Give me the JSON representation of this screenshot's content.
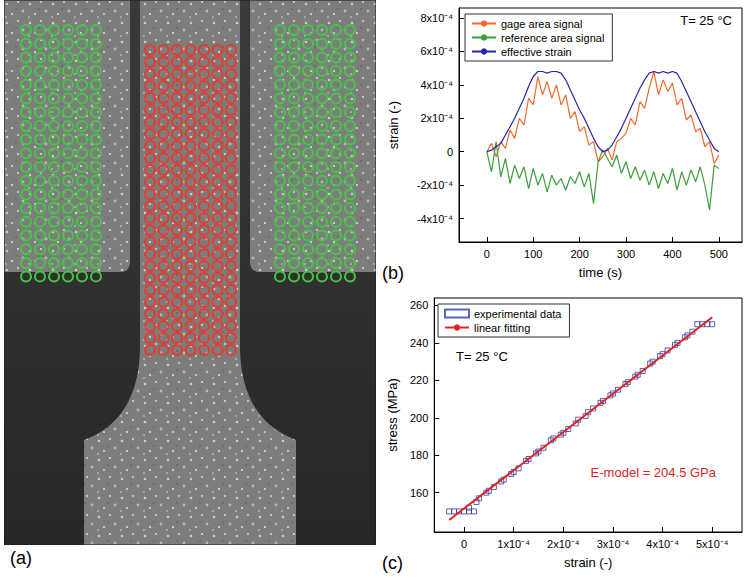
{
  "image_panel": {
    "label": "(a)"
  },
  "chart_data": [
    {
      "type": "line",
      "panel_label": "(b)",
      "x_label": "time (s)",
      "y_label": "strain (-)",
      "annotations": [
        {
          "text": "T= 25 °C",
          "color": "#000000"
        }
      ],
      "xlim": [
        -60,
        550
      ],
      "xticks": [
        0,
        100,
        200,
        300,
        400,
        500
      ],
      "ylim": [
        -0.00054,
        0.00086
      ],
      "yticks": [
        {
          "value": -0.0004,
          "label": "-4x10⁻⁴"
        },
        {
          "value": -0.0002,
          "label": "-2x10⁻⁴"
        },
        0,
        {
          "value": 0.0002,
          "label": "2x10⁻⁴"
        },
        {
          "value": 0.0004,
          "label": "4x10⁻⁴"
        },
        {
          "value": 0.0006,
          "label": "6x10⁻⁴"
        },
        {
          "value": 0.0008,
          "label": "8x10⁻⁴"
        }
      ],
      "grid": false,
      "legend": "upper left",
      "x": [
        0,
        10,
        20,
        30,
        40,
        50,
        60,
        70,
        80,
        90,
        100,
        110,
        120,
        130,
        140,
        150,
        160,
        170,
        180,
        190,
        200,
        210,
        220,
        230,
        240,
        250,
        260,
        270,
        280,
        290,
        300,
        310,
        320,
        330,
        340,
        350,
        360,
        370,
        380,
        390,
        400,
        410,
        420,
        430,
        440,
        450,
        460,
        470,
        480,
        490,
        500
      ],
      "series": [
        {
          "name": "gage area signal",
          "color": "#f26a2c",
          "marker": "none",
          "line_style": "solid",
          "values": [
            0,
            5e-05,
            -3e-05,
            6e-05,
            2e-05,
            0.00013,
            8e-05,
            0.0002,
            0.00016,
            0.00032,
            0.00028,
            0.00045,
            0.00034,
            0.00042,
            0.00032,
            0.0004,
            0.00028,
            0.00034,
            0.0002,
            0.00024,
            0.00012,
            0.00015,
            4e-05,
            6e-05,
            -6e-05,
            -3e-05,
            2e-05,
            -5e-05,
            6e-05,
            8e-05,
            0.00011,
            0.0002,
            0.00016,
            0.0003,
            0.00026,
            0.00038,
            0.00048,
            0.00034,
            0.00043,
            0.00036,
            0.00041,
            0.00028,
            0.00032,
            0.00019,
            0.00022,
            0.00012,
            0.00014,
            3e-05,
            6e-05,
            -7e-05,
            -2e-05
          ]
        },
        {
          "name": "reference area signal",
          "color": "#3a9e3a",
          "marker": "none",
          "line_style": "solid",
          "values": [
            0,
            -0.00012,
            6e-05,
            -0.00015,
            -4e-05,
            -0.00019,
            -8e-05,
            -0.00016,
            -9e-05,
            -0.00022,
            -0.0001,
            -0.0002,
            -0.00013,
            -0.00024,
            -0.00014,
            -0.0002,
            -0.00016,
            -0.00023,
            -0.00015,
            -0.00019,
            -0.00012,
            -0.00021,
            -0.00013,
            -0.00031,
            -6e-05,
            1e-05,
            -4e-05,
            -9e-05,
            -2e-05,
            -0.00013,
            -6e-05,
            -0.00016,
            -9e-05,
            -0.00017,
            -0.00011,
            -0.0002,
            -0.00012,
            -0.00022,
            -0.00013,
            -0.00019,
            -0.0001,
            -0.00023,
            -0.00012,
            -0.0002,
            -0.00011,
            -0.00018,
            -9e-05,
            -0.0002,
            -0.00035,
            -8e-05,
            -0.0001
          ]
        },
        {
          "name": "effective strain",
          "color": "#2626a8",
          "marker": "none",
          "line_style": "solid",
          "values": [
            0,
            1e-05,
            3e-05,
            5e-05,
            0.0001,
            0.00015,
            0.0002,
            0.00026,
            0.00032,
            0.00039,
            0.00045,
            0.00048,
            0.00048,
            0.00047,
            0.00048,
            0.00048,
            0.00047,
            0.00043,
            0.00037,
            0.00031,
            0.00025,
            0.0002,
            0.00014,
            8e-05,
            3e-05,
            0,
            1e-05,
            4e-05,
            9e-05,
            0.00014,
            0.0002,
            0.00026,
            0.00032,
            0.00038,
            0.00043,
            0.00047,
            0.00048,
            0.00047,
            0.00048,
            0.00047,
            0.00048,
            0.00047,
            0.00042,
            0.00036,
            0.0003,
            0.00024,
            0.00018,
            0.00012,
            7e-05,
            2e-05,
            0
          ]
        }
      ]
    },
    {
      "type": "scatter",
      "panel_label": "(c)",
      "x_label": "strain (-)",
      "y_label": "stress (MPa)",
      "annotations": [
        {
          "text": "T= 25 °C",
          "color": "#000000"
        },
        {
          "text": "E-model = 204.5 GPa",
          "color": "#e02424"
        }
      ],
      "xlim": [
        -6e-05,
        0.00056
      ],
      "xticks": [
        0,
        {
          "value": 0.0001,
          "label": "1x10⁻⁴"
        },
        {
          "value": 0.0002,
          "label": "2x10⁻⁴"
        },
        {
          "value": 0.0003,
          "label": "3x10⁻⁴"
        },
        {
          "value": 0.0004,
          "label": "4x10⁻⁴"
        },
        {
          "value": 0.0005,
          "label": "5x10⁻⁴"
        }
      ],
      "ylim": [
        139,
        264
      ],
      "yticks": [
        160,
        180,
        200,
        220,
        240,
        260
      ],
      "grid": false,
      "legend": "upper left",
      "series": [
        {
          "name": "experimental data",
          "type": "scatter",
          "color": "#2f3fa8",
          "marker": "square",
          "x": [
            -3e-05,
            -2e-05,
            -1e-05,
            0,
            1e-05,
            2e-05,
            1e-05,
            2.5e-05,
            3e-05,
            4.5e-05,
            5e-05,
            6e-05,
            7.5e-05,
            8e-05,
            9.5e-05,
            0.0001,
            0.00011,
            0.000125,
            0.00013,
            0.000145,
            0.00015,
            0.00016,
            0.000175,
            0.00018,
            0.000195,
            0.0002,
            0.00021,
            0.000225,
            0.00023,
            0.000245,
            0.00025,
            0.00026,
            0.000275,
            0.00028,
            0.000295,
            0.0003,
            0.00031,
            0.000325,
            0.00033,
            0.000345,
            0.00035,
            0.00036,
            0.000375,
            0.00038,
            0.000395,
            0.0004,
            0.00041,
            0.000425,
            0.00043,
            0.000445,
            0.00045,
            0.00046,
            0.00047,
            0.00048,
            0.00049,
            0.0005
          ],
          "values": [
            150,
            150,
            150,
            150,
            150,
            150,
            152,
            155,
            157,
            160,
            161,
            163,
            166,
            167,
            170,
            171,
            173,
            177,
            178,
            181,
            182,
            184,
            188,
            189,
            191,
            192,
            194,
            197,
            199,
            201,
            203,
            205,
            208,
            209,
            212,
            213,
            215,
            218,
            219,
            222,
            223,
            225,
            229,
            230,
            233,
            234,
            236,
            239,
            240,
            243,
            244,
            246,
            250,
            250,
            250,
            250
          ]
        },
        {
          "name": "linear fitting",
          "type": "line",
          "color": "#e02424",
          "marker": "none",
          "line_style": "solid",
          "x": [
            -3e-05,
            0.0005
          ],
          "values": [
            145.4,
            253.7
          ]
        }
      ]
    }
  ]
}
